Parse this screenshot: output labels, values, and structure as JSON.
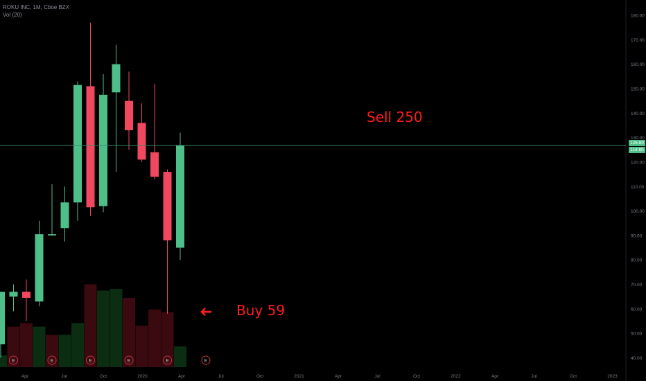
{
  "header": {
    "symbol_line": "ROKU INC, 1M, Cboe BZX",
    "indicator_line": "Vol (20)"
  },
  "colors": {
    "up": "#4fbf8a",
    "down": "#f0485f",
    "vol_up": "#0b2d12",
    "vol_down": "#3a0a10",
    "price_line": "#2f8a6e",
    "annotation": "#ff1c1c",
    "axis_text": "#7a7f8a",
    "earnings": "#c0373d"
  },
  "annotations": {
    "sell": "Sell 250",
    "buy": "Buy 59",
    "arrow_glyph": "➜"
  },
  "price_tag": {
    "price": "126.80",
    "countdown": "11d 8h"
  },
  "chart_data": {
    "type": "candlestick",
    "timeframe": "1M",
    "y_axis": {
      "position": "right",
      "range": [
        39,
        182
      ],
      "ticks": [
        "40.00",
        "50.00",
        "60.00",
        "70.00",
        "80.00",
        "90.00",
        "100.00",
        "110.00",
        "120.00",
        "130.00",
        "140.00",
        "150.00",
        "160.00",
        "170.00",
        "180.00"
      ]
    },
    "x_axis": {
      "tick_labels": [
        "Apr",
        "Jul",
        "Oct",
        "2020",
        "Apr",
        "Jul",
        "Oct",
        "2021",
        "Apr",
        "Jul",
        "Oct",
        "2022",
        "Apr",
        "Jul",
        "Oct",
        "2023"
      ]
    },
    "candles": [
      {
        "date": "2019-01",
        "open": 45.5,
        "high": 67,
        "low": 40,
        "close": 67
      },
      {
        "date": "2019-02",
        "open": 65,
        "high": 70,
        "low": 59,
        "close": 67
      },
      {
        "date": "2019-03",
        "open": 67,
        "high": 72,
        "low": 55,
        "close": 64.5
      },
      {
        "date": "2019-04",
        "open": 63,
        "high": 96,
        "low": 61,
        "close": 90.5
      },
      {
        "date": "2019-05",
        "open": 90,
        "high": 111,
        "low": 90,
        "close": 90.5
      },
      {
        "date": "2019-06",
        "open": 93,
        "high": 110,
        "low": 87.5,
        "close": 103.5
      },
      {
        "date": "2019-07",
        "open": 103.5,
        "high": 153,
        "low": 96,
        "close": 151.5
      },
      {
        "date": "2019-08",
        "open": 151,
        "high": 177,
        "low": 98,
        "close": 101.5
      },
      {
        "date": "2019-09",
        "open": 102,
        "high": 156,
        "low": 99.5,
        "close": 147.5
      },
      {
        "date": "2019-10",
        "open": 148.5,
        "high": 168,
        "low": 116,
        "close": 160
      },
      {
        "date": "2019-11",
        "open": 145,
        "high": 157,
        "low": 125,
        "close": 133
      },
      {
        "date": "2019-12",
        "open": 136,
        "high": 144,
        "low": 120,
        "close": 121
      },
      {
        "date": "2020-01",
        "open": 124,
        "high": 152,
        "low": 113,
        "close": 114
      },
      {
        "date": "2020-02",
        "open": 116,
        "high": 117,
        "low": 58,
        "close": 88
      },
      {
        "date": "2020-03",
        "open": 85,
        "high": 132,
        "low": 80,
        "close": 126.8
      }
    ],
    "volume": [
      {
        "date": "2019-01",
        "dir": "up",
        "value": 0.13
      },
      {
        "date": "2019-02",
        "dir": "down",
        "value": 0.45
      },
      {
        "date": "2019-03",
        "dir": "down",
        "value": 0.49
      },
      {
        "date": "2019-04",
        "dir": "up",
        "value": 0.45
      },
      {
        "date": "2019-05",
        "dir": "down",
        "value": 0.36
      },
      {
        "date": "2019-06",
        "dir": "up",
        "value": 0.36
      },
      {
        "date": "2019-07",
        "dir": "up",
        "value": 0.49
      },
      {
        "date": "2019-08",
        "dir": "down",
        "value": 0.92
      },
      {
        "date": "2019-09",
        "dir": "up",
        "value": 0.85
      },
      {
        "date": "2019-10",
        "dir": "up",
        "value": 0.87
      },
      {
        "date": "2019-11",
        "dir": "down",
        "value": 0.77
      },
      {
        "date": "2019-12",
        "dir": "down",
        "value": 0.46
      },
      {
        "date": "2020-01",
        "dir": "down",
        "value": 0.64
      },
      {
        "date": "2020-02",
        "dir": "down",
        "value": 0.61
      },
      {
        "date": "2020-03",
        "dir": "up",
        "value": 0.23
      }
    ],
    "earnings_markers": [
      {
        "date": "2019-02",
        "label": "E"
      },
      {
        "date": "2019-05",
        "label": "E"
      },
      {
        "date": "2019-08",
        "label": "E"
      },
      {
        "date": "2019-11",
        "label": "E"
      },
      {
        "date": "2020-02",
        "label": "E"
      },
      {
        "date": "2020-05",
        "label": "E"
      }
    ],
    "horizontal_line": 126.8
  }
}
